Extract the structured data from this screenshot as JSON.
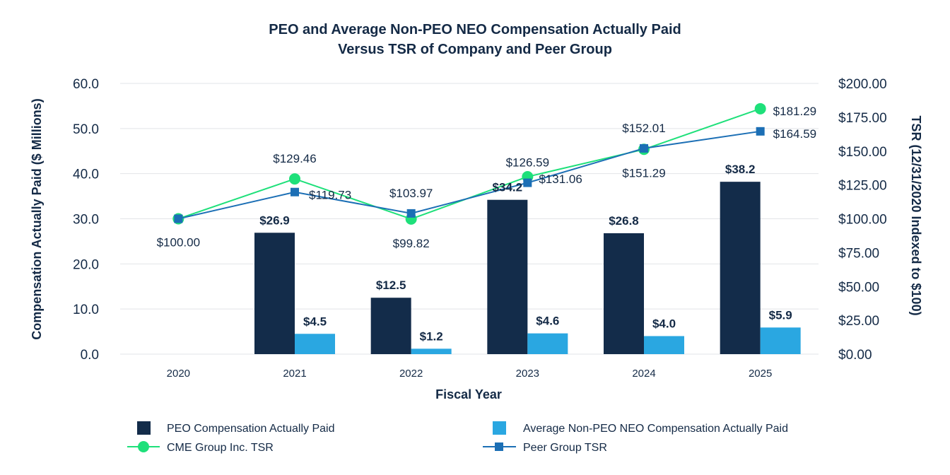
{
  "chart_data": {
    "type": "bar",
    "title_lines": [
      "PEO and Average Non-PEO NEO Compensation Actually Paid",
      "Versus TSR of Company and Peer Group"
    ],
    "xlabel": "Fiscal Year",
    "ylabel": "Compensation Actually Paid ($ Millions)",
    "y2label": "TSR  (12/31/2020 Indexed to $100)",
    "categories": [
      "2020",
      "2021",
      "2022",
      "2023",
      "2024",
      "2025"
    ],
    "ylim": [
      0,
      60
    ],
    "yticks": [
      0,
      10,
      20,
      30,
      40,
      50,
      60
    ],
    "ytick_labels": [
      "0.0",
      "10.0",
      "20.0",
      "30.0",
      "40.0",
      "50.0",
      "60.0"
    ],
    "y2lim": [
      0,
      200
    ],
    "y2ticks": [
      0,
      25,
      50,
      75,
      100,
      125,
      150,
      175,
      200
    ],
    "y2tick_labels": [
      "$0.00",
      "$25.00",
      "$50.00",
      "$75.00",
      "$100.00",
      "$125.00",
      "$150.00",
      "$175.00",
      "$200.00"
    ],
    "grid": true,
    "legend_position": "bottom",
    "bar_series": [
      {
        "name": "PEO Compensation Actually Paid",
        "color": "#132c4a",
        "values": [
          null,
          26.9,
          12.5,
          34.2,
          26.8,
          38.2
        ],
        "labels": [
          "",
          "$26.9",
          "$12.5",
          "$34.2",
          "$26.8",
          "$38.2"
        ]
      },
      {
        "name": "Average Non-PEO NEO Compensation Actually Paid",
        "color": "#2aa7e1",
        "values": [
          null,
          4.5,
          1.2,
          4.6,
          4.0,
          5.9
        ],
        "labels": [
          "",
          "$4.5",
          "$1.2",
          "$4.6",
          "$4.0",
          "$5.9"
        ]
      }
    ],
    "line_series": [
      {
        "name": "CME Group Inc. TSR",
        "color": "#1ee07a",
        "marker": "circle",
        "axis": "right",
        "values": [
          100.0,
          129.46,
          99.82,
          131.06,
          151.29,
          181.29
        ],
        "labels": [
          "$100.00",
          "$129.46",
          "$99.82",
          "$131.06",
          "$151.29",
          "$181.29"
        ]
      },
      {
        "name": "Peer Group TSR",
        "color": "#1c6fb5",
        "marker": "square",
        "axis": "right",
        "values": [
          100.0,
          119.73,
          103.97,
          126.59,
          152.01,
          164.59
        ],
        "labels": [
          "",
          "$119.73",
          "$103.97",
          "$126.59",
          "$152.01",
          "$164.59"
        ]
      }
    ]
  }
}
